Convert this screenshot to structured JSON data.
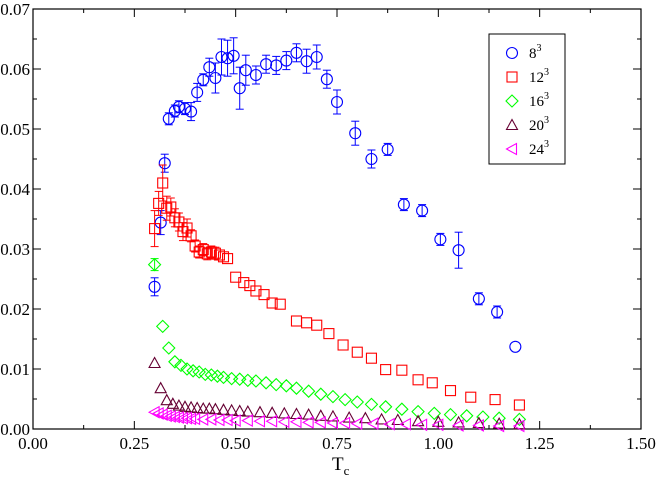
{
  "chart_data": {
    "type": "scatter",
    "title": "",
    "xlabel": {
      "main": "T",
      "sub": "c"
    },
    "ylabel": "",
    "xlim": [
      0.0,
      1.5
    ],
    "ylim": [
      0.0,
      0.07
    ],
    "xticks": [
      "0.00",
      "0.25",
      "0.50",
      "0.75",
      "1.00",
      "1.25",
      "1.50"
    ],
    "yticks": [
      "0.00",
      "0.01",
      "0.02",
      "0.03",
      "0.04",
      "0.05",
      "0.06",
      "0.07"
    ],
    "xtick_values": [
      0.0,
      0.25,
      0.5,
      0.75,
      1.0,
      1.25,
      1.5
    ],
    "ytick_values": [
      0.0,
      0.01,
      0.02,
      0.03,
      0.04,
      0.05,
      0.06,
      0.07
    ],
    "grid": false,
    "legend_position": "top-right",
    "series": [
      {
        "name": "8",
        "sup": "3",
        "marker": "circle",
        "color": "#0000ff",
        "x": [
          0.3,
          0.315,
          0.325,
          0.335,
          0.35,
          0.36,
          0.375,
          0.39,
          0.405,
          0.42,
          0.435,
          0.45,
          0.465,
          0.48,
          0.495,
          0.51,
          0.525,
          0.55,
          0.575,
          0.6,
          0.625,
          0.65,
          0.675,
          0.7,
          0.725,
          0.75,
          0.795,
          0.835,
          0.875,
          0.915,
          0.96,
          1.005,
          1.05,
          1.1,
          1.145,
          1.19
        ],
        "y": [
          0.0237,
          0.0344,
          0.0443,
          0.0517,
          0.053,
          0.0537,
          0.0534,
          0.0529,
          0.0561,
          0.0582,
          0.0603,
          0.0585,
          0.062,
          0.0618,
          0.0622,
          0.0568,
          0.0598,
          0.059,
          0.0608,
          0.0606,
          0.0614,
          0.0627,
          0.0613,
          0.062,
          0.0583,
          0.0545,
          0.0493,
          0.045,
          0.0466,
          0.0374,
          0.0364,
          0.0316,
          0.0298,
          0.0217,
          0.0195,
          0.0137
        ],
        "err": [
          0.0015,
          0.002,
          0.0015,
          0.001,
          0.001,
          0.001,
          0.001,
          0.0015,
          0.0015,
          0.001,
          0.0015,
          0.0025,
          0.003,
          0.003,
          0.003,
          0.0035,
          0.0025,
          0.0015,
          0.0015,
          0.0015,
          0.0015,
          0.0015,
          0.002,
          0.002,
          0.0015,
          0.002,
          0.002,
          0.0015,
          0.001,
          0.001,
          0.001,
          0.001,
          0.003,
          0.001,
          0.001,
          0.0005
        ]
      },
      {
        "name": "12",
        "sup": "3",
        "marker": "square",
        "color": "#ff0000",
        "x": [
          0.3,
          0.31,
          0.32,
          0.33,
          0.34,
          0.35,
          0.36,
          0.37,
          0.38,
          0.39,
          0.4,
          0.41,
          0.42,
          0.43,
          0.44,
          0.45,
          0.46,
          0.47,
          0.48,
          0.5,
          0.52,
          0.535,
          0.55,
          0.57,
          0.59,
          0.61,
          0.65,
          0.675,
          0.7,
          0.73,
          0.765,
          0.8,
          0.835,
          0.87,
          0.91,
          0.95,
          0.985,
          1.03,
          1.08,
          1.14,
          1.2
        ],
        "y": [
          0.0334,
          0.0376,
          0.041,
          0.0368,
          0.037,
          0.0352,
          0.0345,
          0.0329,
          0.0335,
          0.0322,
          0.0305,
          0.0295,
          0.0299,
          0.0292,
          0.0295,
          0.0293,
          0.029,
          0.0287,
          0.0284,
          0.0253,
          0.0244,
          0.0239,
          0.023,
          0.0224,
          0.021,
          0.0208,
          0.018,
          0.0177,
          0.0173,
          0.0159,
          0.014,
          0.0128,
          0.0118,
          0.0099,
          0.0098,
          0.0082,
          0.0077,
          0.0064,
          0.0053,
          0.0049,
          0.004
        ],
        "err": [
          0.003,
          0.002,
          0.003,
          0.002,
          0.0015,
          0.0015,
          0.0015,
          0.0015,
          0.0015,
          0.001,
          0.001,
          0.001,
          0.001,
          0.001,
          0.001,
          0.001,
          0.0008,
          0.0008,
          0.0008,
          0.0008,
          0.0008,
          0.0008,
          0.0008,
          0.0008,
          0.0006,
          0.0006,
          0.0006,
          0.0006,
          0.0006,
          0.0006,
          0.0006,
          0.0006,
          0.0006,
          0.0006,
          0.0006,
          0.0006,
          0.0006,
          0.0006,
          0.0006,
          0.0006,
          0.0006
        ]
      },
      {
        "name": "16",
        "sup": "3",
        "marker": "diamond",
        "color": "#00ff00",
        "x": [
          0.3,
          0.32,
          0.335,
          0.35,
          0.365,
          0.38,
          0.395,
          0.41,
          0.425,
          0.44,
          0.455,
          0.47,
          0.49,
          0.51,
          0.53,
          0.55,
          0.575,
          0.6,
          0.625,
          0.65,
          0.68,
          0.71,
          0.74,
          0.77,
          0.8,
          0.835,
          0.87,
          0.91,
          0.95,
          0.99,
          1.03,
          1.07,
          1.11,
          1.15,
          1.2
        ],
        "y": [
          0.0274,
          0.0171,
          0.0135,
          0.0112,
          0.0106,
          0.01,
          0.0097,
          0.0095,
          0.0091,
          0.009,
          0.0088,
          0.0086,
          0.0084,
          0.0083,
          0.0081,
          0.008,
          0.0077,
          0.0074,
          0.0072,
          0.0068,
          0.0063,
          0.0058,
          0.0054,
          0.0049,
          0.0045,
          0.0041,
          0.0037,
          0.0033,
          0.0029,
          0.0026,
          0.0024,
          0.0022,
          0.002,
          0.0018,
          0.0016
        ],
        "err": [
          0.001,
          0.0008,
          0.0007,
          0.0005,
          0.0004,
          0.0004,
          0.0004,
          0.0003,
          0.0003,
          0.0003,
          0.0003,
          0.0003,
          0.0003,
          0.0003,
          0.0003,
          0.0003,
          0.0003,
          0.0003,
          0.0003,
          0.0003,
          0.0003,
          0.0003,
          0.0003,
          0.0003,
          0.0003,
          0.0003,
          0.0003,
          0.0003,
          0.0003,
          0.0003,
          0.0003,
          0.0003,
          0.0003,
          0.0003,
          0.0003
        ]
      },
      {
        "name": "20",
        "sup": "3",
        "marker": "triangle-up",
        "color": "#660033",
        "x": [
          0.3,
          0.315,
          0.33,
          0.345,
          0.36,
          0.375,
          0.39,
          0.405,
          0.42,
          0.435,
          0.45,
          0.47,
          0.49,
          0.51,
          0.53,
          0.56,
          0.59,
          0.62,
          0.65,
          0.68,
          0.71,
          0.74,
          0.78,
          0.82,
          0.86,
          0.9,
          0.95,
          1.0,
          1.05,
          1.1,
          1.15,
          1.2
        ],
        "y": [
          0.011,
          0.0068,
          0.0048,
          0.0042,
          0.0039,
          0.0037,
          0.0036,
          0.0035,
          0.0034,
          0.0034,
          0.0033,
          0.0032,
          0.0031,
          0.003,
          0.0029,
          0.0028,
          0.0027,
          0.0026,
          0.0025,
          0.0024,
          0.0022,
          0.0021,
          0.0019,
          0.0018,
          0.0016,
          0.0015,
          0.0013,
          0.0012,
          0.0011,
          0.001,
          0.0009,
          0.0008
        ],
        "err": [
          0.0005,
          0.0004,
          0.0003,
          0.0002,
          0.0002,
          0.0002,
          0.0002,
          0.0002,
          0.0002,
          0.0002,
          0.0002,
          0.0002,
          0.0002,
          0.0002,
          0.0002,
          0.0002,
          0.0002,
          0.0002,
          0.0002,
          0.0002,
          0.0002,
          0.0002,
          0.0002,
          0.0002,
          0.0002,
          0.0002,
          0.0002,
          0.0002,
          0.0002,
          0.0002,
          0.0002,
          0.0002
        ]
      },
      {
        "name": "24",
        "sup": "3",
        "marker": "triangle-left",
        "color": "#ff00ff",
        "x": [
          0.3,
          0.31,
          0.32,
          0.33,
          0.34,
          0.35,
          0.36,
          0.37,
          0.38,
          0.39,
          0.4,
          0.42,
          0.44,
          0.46,
          0.48,
          0.5,
          0.53,
          0.56,
          0.59,
          0.62,
          0.65,
          0.68,
          0.71,
          0.74,
          0.77,
          0.8,
          0.84,
          0.88,
          0.92,
          0.96,
          1.0,
          1.05,
          1.1,
          1.15,
          1.2
        ],
        "y": [
          0.0028,
          0.0026,
          0.0024,
          0.0022,
          0.0021,
          0.002,
          0.0019,
          0.0018,
          0.0018,
          0.0017,
          0.0017,
          0.0016,
          0.0016,
          0.0015,
          0.0015,
          0.0014,
          0.0014,
          0.0013,
          0.0013,
          0.0012,
          0.0012,
          0.0011,
          0.0011,
          0.001,
          0.001,
          0.0009,
          0.0009,
          0.0008,
          0.0008,
          0.0007,
          0.0007,
          0.0006,
          0.0006,
          0.0005,
          0.0005
        ],
        "err": [
          0.0002,
          0.0002,
          0.0001,
          0.0001,
          0.0001,
          0.0001,
          0.0001,
          0.0001,
          0.0001,
          0.0001,
          0.0001,
          0.0001,
          0.0001,
          0.0001,
          0.0001,
          0.0001,
          0.0001,
          0.0001,
          0.0001,
          0.0001,
          0.0001,
          0.0001,
          0.0001,
          0.0001,
          0.0001,
          0.0001,
          0.0001,
          0.0001,
          0.0001,
          0.0001,
          0.0001,
          0.0001,
          0.0001,
          0.0001,
          0.0001
        ]
      }
    ]
  }
}
